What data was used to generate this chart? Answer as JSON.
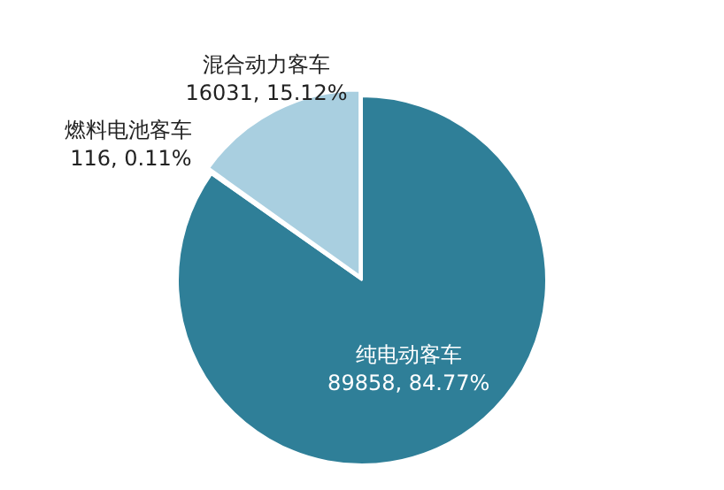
{
  "chart_data": {
    "type": "pie",
    "categories": [
      "纯电动客车",
      "燃料电池客车",
      "混合动力客车"
    ],
    "values": [
      89858,
      116,
      16031
    ],
    "colors": [
      "#2f7f98",
      "#6b6f72",
      "#a9cfe0"
    ],
    "value_labels": [
      "89858, 84.77%",
      "116, 0.11%",
      "16031, 15.12%"
    ],
    "legend": false
  }
}
